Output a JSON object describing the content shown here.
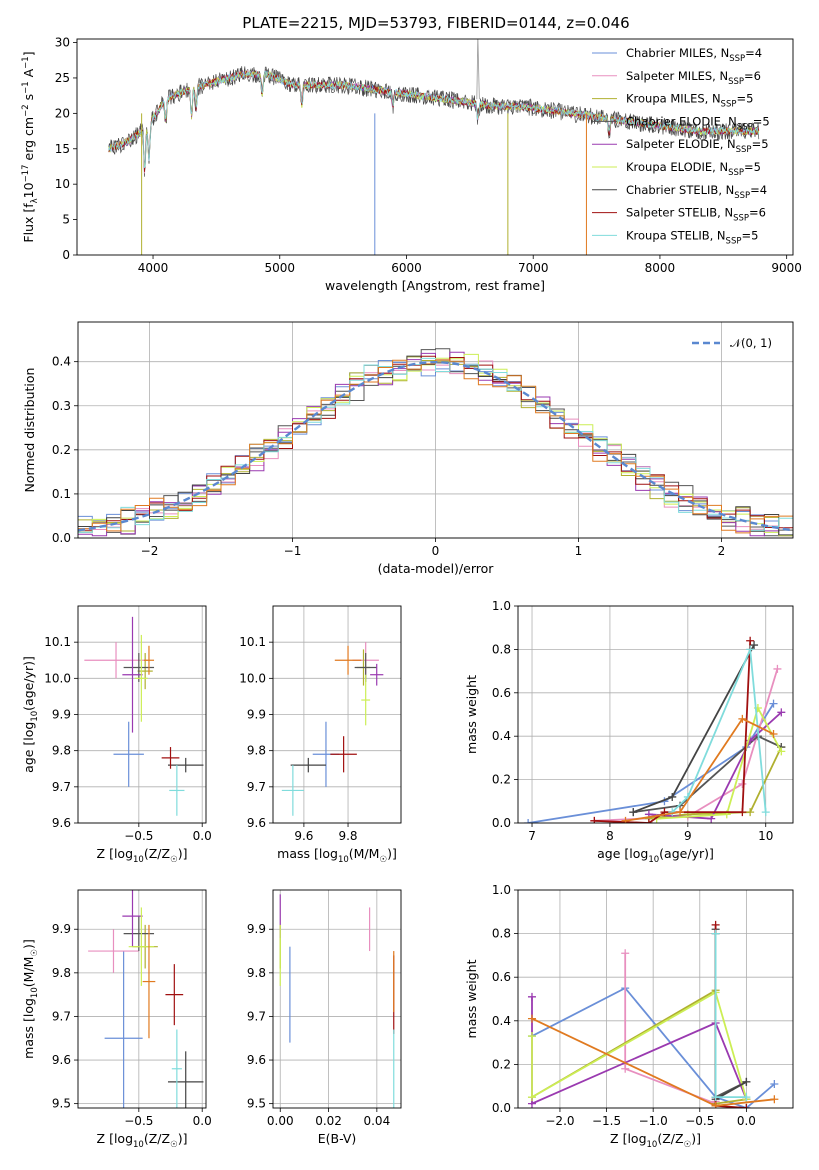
{
  "title": "PLATE=2215, MJD=53793, FIBERID=0144, z=0.046",
  "colors": [
    "#6a8fd8",
    "#e88fbf",
    "#b0b030",
    "#555555",
    "#9a3ab0",
    "#ccee55",
    "#444444",
    "#a01010",
    "#80dcdc",
    "#e07a20"
  ],
  "chart_data": [
    {
      "type": "line",
      "id": "spectrum",
      "xlabel": "wavelength [Angstrom, rest frame]",
      "ylabel": "Flux [f_λ10^-17 erg cm^-2 s^-1 A^-1]",
      "xlim": [
        3400,
        9050
      ],
      "ylim": [
        0,
        30.5
      ],
      "xticks": [
        4000,
        5000,
        6000,
        7000,
        8000,
        9000
      ],
      "yticks": [
        0,
        5,
        10,
        15,
        20,
        25,
        30
      ],
      "grid": false,
      "legend_position": "top-right",
      "series": [
        {
          "name": "Chabrier MILES, N_SSP=4"
        },
        {
          "name": "Salpeter MILES, N_SSP=6"
        },
        {
          "name": "Kroupa MILES, N_SSP=5"
        },
        {
          "name": "Chabrier ELODIE, N_SSP=5"
        },
        {
          "name": "Salpeter ELODIE, N_SSP=5"
        },
        {
          "name": "Kroupa ELODIE, N_SSP=5"
        },
        {
          "name": "Chabrier STELIB, N_SSP=4"
        },
        {
          "name": "Salpeter STELIB, N_SSP=6"
        },
        {
          "name": "Kroupa STELIB, N_SSP=5"
        }
      ],
      "continuum": {
        "x": [
          3650,
          3800,
          3950,
          4100,
          4300,
          4500,
          4700,
          4900,
          5100,
          5300,
          5500,
          5700,
          5900,
          6100,
          6300,
          6500,
          6700,
          6900,
          7100,
          7300,
          7500,
          7700,
          7900,
          8100,
          8300,
          8500,
          8700,
          8800
        ],
        "y": [
          15,
          16,
          18,
          22,
          23.5,
          24.5,
          25.5,
          25.5,
          24,
          24,
          24,
          23.5,
          23,
          22.5,
          22,
          21.5,
          21,
          21,
          20.5,
          20,
          19.5,
          19,
          18.5,
          18,
          17.5,
          17.5,
          17.5,
          17.5
        ]
      }
    },
    {
      "type": "histogram",
      "id": "residuals",
      "xlabel": "(data-model)/error",
      "ylabel": "Normed distribution",
      "xlim": [
        -2.5,
        2.5
      ],
      "ylim": [
        0,
        0.49
      ],
      "xticks": [
        -2,
        -1,
        0,
        1,
        2
      ],
      "yticks": [
        0.0,
        0.1,
        0.2,
        0.3,
        0.4
      ],
      "grid": true,
      "legend_position": "top-right",
      "legend_label": "𝒩(0, 1)",
      "bin_width": 0.1
    },
    {
      "type": "scatter",
      "id": "age-vs-Z",
      "xlabel": "Z [log10(Z/Z☉)]",
      "ylabel": "age  [log10(age/yr)]",
      "xlim": [
        -0.98,
        0.03
      ],
      "ylim": [
        9.6,
        10.2
      ],
      "xticks": [
        -0.5,
        0.0
      ],
      "yticks": [
        9.6,
        9.7,
        9.8,
        9.9,
        10.0,
        10.1
      ],
      "grid": true,
      "points": [
        {
          "x": -0.58,
          "y": 9.79,
          "xerr": 0.12,
          "yerr": 0.09,
          "c": 0
        },
        {
          "x": -0.68,
          "y": 10.05,
          "xerr": 0.25,
          "yerr": 0.05,
          "c": 1
        },
        {
          "x": -0.45,
          "y": 10.02,
          "xerr": 0.06,
          "yerr": 0.05,
          "c": 2
        },
        {
          "x": -0.5,
          "y": 10.03,
          "xerr": 0.12,
          "yerr": 0.04,
          "c": 3
        },
        {
          "x": -0.55,
          "y": 10.01,
          "xerr": 0.08,
          "yerr": 0.16,
          "c": 4
        },
        {
          "x": -0.48,
          "y": 10.0,
          "xerr": 0.05,
          "yerr": 0.12,
          "c": 5
        },
        {
          "x": -0.13,
          "y": 9.76,
          "xerr": 0.14,
          "yerr": 0.02,
          "c": 6
        },
        {
          "x": -0.25,
          "y": 9.78,
          "xerr": 0.07,
          "yerr": 0.03,
          "c": 7
        },
        {
          "x": -0.2,
          "y": 9.69,
          "xerr": 0.06,
          "yerr": 0.07,
          "c": 8
        },
        {
          "x": -0.42,
          "y": 10.05,
          "xerr": 0.04,
          "yerr": 0.04,
          "c": 9
        }
      ]
    },
    {
      "type": "scatter",
      "id": "age-vs-mass",
      "xlabel": "mass [log10(M/M☉)]",
      "ylabel": "",
      "xlim": [
        9.46,
        10.04
      ],
      "ylim": [
        9.6,
        10.2
      ],
      "xticks": [
        9.6,
        9.8
      ],
      "yticks": [
        9.6,
        9.7,
        9.8,
        9.9,
        10.0,
        10.1
      ],
      "grid": true,
      "points": [
        {
          "x": 9.7,
          "y": 9.79,
          "xerr": 0.06,
          "yerr": 0.09,
          "c": 0
        },
        {
          "x": 9.88,
          "y": 10.05,
          "xerr": 0.06,
          "yerr": 0.05,
          "c": 1
        },
        {
          "x": 9.87,
          "y": 10.03,
          "xerr": 0.03,
          "yerr": 0.05,
          "c": 2
        },
        {
          "x": 9.88,
          "y": 10.03,
          "xerr": 0.05,
          "yerr": 0.04,
          "c": 3
        },
        {
          "x": 9.93,
          "y": 10.01,
          "xerr": 0.03,
          "yerr": 0.03,
          "c": 4
        },
        {
          "x": 9.88,
          "y": 9.94,
          "xerr": 0.02,
          "yerr": 0.07,
          "c": 5
        },
        {
          "x": 9.62,
          "y": 9.76,
          "xerr": 0.08,
          "yerr": 0.02,
          "c": 6
        },
        {
          "x": 9.78,
          "y": 9.79,
          "xerr": 0.06,
          "yerr": 0.05,
          "c": 7
        },
        {
          "x": 9.55,
          "y": 9.69,
          "xerr": 0.05,
          "yerr": 0.07,
          "c": 8
        },
        {
          "x": 9.8,
          "y": 10.05,
          "xerr": 0.06,
          "yerr": 0.04,
          "c": 9
        }
      ]
    },
    {
      "type": "line",
      "id": "massweight-vs-age",
      "xlabel": "age  [log10(age/yr)]",
      "ylabel": "mass weight",
      "xlim": [
        6.82,
        10.35
      ],
      "ylim": [
        0,
        1.0
      ],
      "xticks": [
        7,
        8,
        9,
        10
      ],
      "yticks": [
        0.0,
        0.2,
        0.4,
        0.6,
        0.8,
        1.0
      ],
      "grid": true,
      "series": [
        {
          "c": 0,
          "x": [
            6.95,
            8.7,
            9.75,
            10.1
          ],
          "y": [
            0.0,
            0.1,
            0.35,
            0.55
          ]
        },
        {
          "c": 1,
          "x": [
            7.8,
            9.0,
            9.7,
            10.15
          ],
          "y": [
            0.01,
            0.03,
            0.18,
            0.71
          ]
        },
        {
          "c": 2,
          "x": [
            8.5,
            9.0,
            9.8,
            10.2
          ],
          "y": [
            0.02,
            0.04,
            0.05,
            0.35
          ]
        },
        {
          "c": 3,
          "x": [
            8.3,
            8.9,
            9.9,
            10.2
          ],
          "y": [
            0.05,
            0.08,
            0.4,
            0.35
          ]
        },
        {
          "c": 4,
          "x": [
            8.5,
            9.3,
            9.8,
            10.2
          ],
          "y": [
            0.04,
            0.02,
            0.38,
            0.51
          ]
        },
        {
          "c": 5,
          "x": [
            8.6,
            9.5,
            9.9,
            10.2
          ],
          "y": [
            0.02,
            0.04,
            0.53,
            0.33
          ]
        },
        {
          "c": 6,
          "x": [
            8.3,
            8.8,
            9.85
          ],
          "y": [
            0.05,
            0.12,
            0.82
          ]
        },
        {
          "c": 7,
          "x": [
            7.8,
            8.5,
            8.7,
            9.7,
            9.8
          ],
          "y": [
            0.01,
            0.0,
            0.05,
            0.05,
            0.84
          ]
        },
        {
          "c": 8,
          "x": [
            8.8,
            9.0,
            9.8,
            10.0
          ],
          "y": [
            0.05,
            0.12,
            0.8,
            0.05
          ]
        },
        {
          "c": 9,
          "x": [
            8.2,
            8.9,
            9.7,
            10.1
          ],
          "y": [
            0.01,
            0.05,
            0.48,
            0.41
          ]
        }
      ]
    },
    {
      "type": "scatter",
      "id": "mass-vs-Z",
      "xlabel": "Z [log10(Z/Z☉)]",
      "ylabel": "mass [log10(M/M☉)]",
      "xlim": [
        -0.98,
        0.03
      ],
      "ylim": [
        9.49,
        9.99
      ],
      "xticks": [
        -0.5,
        0.0
      ],
      "yticks": [
        9.5,
        9.6,
        9.7,
        9.8,
        9.9
      ],
      "grid": true,
      "points": [
        {
          "x": -0.62,
          "y": 9.65,
          "xerr": 0.15,
          "yerr": 0.2,
          "c": 0
        },
        {
          "x": -0.7,
          "y": 9.85,
          "xerr": 0.2,
          "yerr": 0.05,
          "c": 1
        },
        {
          "x": -0.45,
          "y": 9.86,
          "xerr": 0.1,
          "yerr": 0.05,
          "c": 2
        },
        {
          "x": -0.5,
          "y": 9.89,
          "xerr": 0.12,
          "yerr": 0.04,
          "c": 3
        },
        {
          "x": -0.55,
          "y": 9.93,
          "xerr": 0.08,
          "yerr": 0.07,
          "c": 4
        },
        {
          "x": -0.48,
          "y": 9.86,
          "xerr": 0.1,
          "yerr": 0.09,
          "c": 5
        },
        {
          "x": -0.13,
          "y": 9.55,
          "xerr": 0.14,
          "yerr": 0.07,
          "c": 6
        },
        {
          "x": -0.22,
          "y": 9.75,
          "xerr": 0.07,
          "yerr": 0.07,
          "c": 7
        },
        {
          "x": -0.2,
          "y": 9.58,
          "xerr": 0.04,
          "yerr": 0.09,
          "c": 8
        },
        {
          "x": -0.42,
          "y": 9.78,
          "xerr": 0.05,
          "yerr": 0.13,
          "c": 9
        }
      ]
    },
    {
      "type": "scatter",
      "id": "mass-vs-ebv",
      "xlabel": "E(B-V)",
      "ylabel": "",
      "xlim": [
        -0.003,
        0.05
      ],
      "ylim": [
        9.49,
        9.99
      ],
      "xticks": [
        0.0,
        0.02,
        0.04
      ],
      "yticks": [
        9.5,
        9.6,
        9.7,
        9.8,
        9.9
      ],
      "grid": true,
      "points": [
        {
          "x": 0.004,
          "y": 9.75,
          "xerr": 0.0,
          "yerr": 0.11,
          "c": 0
        },
        {
          "x": 0.037,
          "y": 9.9,
          "xerr": 0.0,
          "yerr": 0.05,
          "c": 1
        },
        {
          "x": 0.0,
          "y": 9.86,
          "xerr": 0.0,
          "yerr": 0.05,
          "c": 2
        },
        {
          "x": 0.0,
          "y": 9.93,
          "xerr": 0.0,
          "yerr": 0.05,
          "c": 4
        },
        {
          "x": 0.0,
          "y": 9.84,
          "xerr": 0.0,
          "yerr": 0.07,
          "c": 5
        },
        {
          "x": 0.047,
          "y": 9.75,
          "xerr": 0.0,
          "yerr": 0.09,
          "c": 7
        },
        {
          "x": 0.047,
          "y": 9.58,
          "xerr": 0.0,
          "yerr": 0.09,
          "c": 8
        },
        {
          "x": 0.047,
          "y": 9.78,
          "xerr": 0.0,
          "yerr": 0.07,
          "c": 9
        }
      ]
    },
    {
      "type": "line",
      "id": "massweight-vs-Z",
      "xlabel": "Z [log10(Z/Z☉)]",
      "ylabel": "mass weight",
      "xlim": [
        -2.45,
        0.5
      ],
      "ylim": [
        0,
        1.0
      ],
      "xticks": [
        -2.0,
        -1.5,
        -1.0,
        -0.5,
        0.0
      ],
      "yticks": [
        0.0,
        0.2,
        0.4,
        0.6,
        0.8,
        1.0
      ],
      "grid": true,
      "series": [
        {
          "c": 0,
          "x": [
            -2.3,
            -1.3,
            -0.33,
            0.0,
            0.3
          ],
          "y": [
            0.33,
            0.55,
            0.05,
            0.0,
            0.11
          ]
        },
        {
          "c": 1,
          "x": [
            -1.3,
            -1.3,
            -0.33,
            -0.33
          ],
          "y": [
            0.71,
            0.18,
            0.02,
            0.03
          ]
        },
        {
          "c": 2,
          "x": [
            -2.3,
            -0.33,
            -0.33,
            0.0
          ],
          "y": [
            0.05,
            0.54,
            0.02,
            0.04
          ]
        },
        {
          "c": 3,
          "x": [
            -0.33,
            -0.33,
            0.0
          ],
          "y": [
            0.8,
            0.05,
            0.12
          ]
        },
        {
          "c": 4,
          "x": [
            -2.3,
            -2.3,
            -0.33,
            0.0
          ],
          "y": [
            0.51,
            0.02,
            0.39,
            0.04
          ]
        },
        {
          "c": 5,
          "x": [
            -2.3,
            -2.3,
            -0.33,
            0.0
          ],
          "y": [
            0.33,
            0.05,
            0.53,
            0.04
          ]
        },
        {
          "c": 6,
          "x": [
            -0.33,
            -0.33,
            0.0
          ],
          "y": [
            0.82,
            0.04,
            0.12
          ]
        },
        {
          "c": 7,
          "x": [
            -0.33,
            -0.33,
            0.0
          ],
          "y": [
            0.84,
            0.01,
            0.0
          ]
        },
        {
          "c": 8,
          "x": [
            -0.33,
            -0.33,
            0.0
          ],
          "y": [
            0.8,
            0.05,
            0.05
          ]
        },
        {
          "c": 9,
          "x": [
            -2.3,
            -0.33,
            0.3
          ],
          "y": [
            0.41,
            0.01,
            0.04
          ]
        }
      ]
    }
  ]
}
